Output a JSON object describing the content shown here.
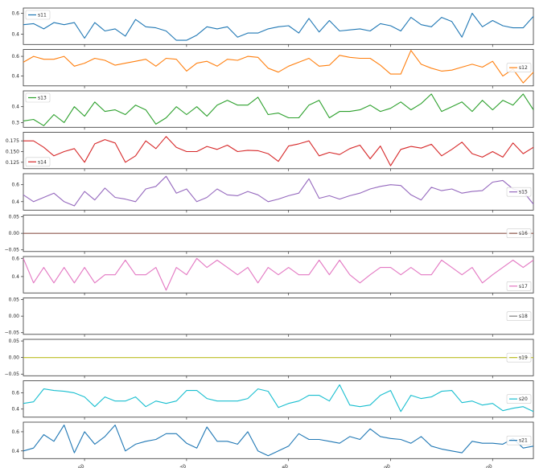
{
  "chart_data": {
    "type": "line",
    "layout": "stacked-subplots",
    "grid": false,
    "x": [
      154,
      155,
      156,
      157,
      158,
      159,
      160,
      161,
      162,
      163,
      164,
      165,
      166,
      167,
      168,
      169,
      170,
      171,
      172,
      173,
      174,
      175,
      176,
      177,
      178,
      179,
      180,
      181,
      182,
      183,
      184,
      185,
      186,
      187,
      188,
      189,
      190,
      191,
      192,
      193,
      194,
      195,
      196,
      197,
      198,
      199,
      200,
      201,
      202,
      203,
      204
    ],
    "xlim": [
      154,
      204
    ],
    "xticks": [
      160,
      170,
      180,
      190,
      200
    ],
    "xtick_labels": [
      "160",
      "170",
      "180",
      "190",
      "200"
    ],
    "panels": [
      {
        "name": "s11",
        "color": "#1f77b4",
        "legend_loc": "top-left",
        "ylim": [
          0.3,
          0.65
        ],
        "yticks": [
          0.4,
          0.6
        ],
        "ytick_labels": [
          "0.4",
          "0.6"
        ],
        "values": [
          0.49,
          0.5,
          0.45,
          0.51,
          0.49,
          0.51,
          0.36,
          0.51,
          0.43,
          0.45,
          0.38,
          0.54,
          0.47,
          0.46,
          0.43,
          0.34,
          0.34,
          0.39,
          0.47,
          0.45,
          0.47,
          0.37,
          0.41,
          0.41,
          0.45,
          0.47,
          0.48,
          0.41,
          0.55,
          0.42,
          0.53,
          0.43,
          0.44,
          0.45,
          0.43,
          0.5,
          0.48,
          0.43,
          0.56,
          0.49,
          0.47,
          0.56,
          0.52,
          0.37,
          0.6,
          0.47,
          0.53,
          0.48,
          0.46,
          0.46,
          0.57
        ]
      },
      {
        "name": "s12",
        "color": "#ff7f0e",
        "legend_loc": "right",
        "ylim": [
          0.3,
          0.67
        ],
        "yticks": [
          0.4,
          0.6
        ],
        "ytick_labels": [
          "0.4",
          "0.6"
        ],
        "values": [
          0.54,
          0.6,
          0.57,
          0.57,
          0.6,
          0.5,
          0.53,
          0.58,
          0.56,
          0.51,
          0.53,
          0.55,
          0.57,
          0.5,
          0.58,
          0.57,
          0.45,
          0.53,
          0.55,
          0.5,
          0.57,
          0.56,
          0.6,
          0.59,
          0.48,
          0.44,
          0.5,
          0.54,
          0.58,
          0.5,
          0.51,
          0.61,
          0.59,
          0.58,
          0.58,
          0.51,
          0.42,
          0.42,
          0.66,
          0.52,
          0.48,
          0.45,
          0.46,
          0.49,
          0.52,
          0.49,
          0.55,
          0.4,
          0.47,
          0.33,
          0.44
        ]
      },
      {
        "name": "s13",
        "color": "#2ca02c",
        "legend_loc": "top-left",
        "ylim": [
          0.27,
          0.5
        ],
        "yticks": [
          0.3,
          0.4
        ],
        "ytick_labels": [
          "0.3",
          "0.4"
        ],
        "values": [
          0.31,
          0.32,
          0.28,
          0.35,
          0.3,
          0.4,
          0.34,
          0.43,
          0.37,
          0.38,
          0.35,
          0.41,
          0.38,
          0.29,
          0.33,
          0.4,
          0.35,
          0.4,
          0.34,
          0.41,
          0.44,
          0.41,
          0.41,
          0.46,
          0.35,
          0.36,
          0.33,
          0.33,
          0.41,
          0.44,
          0.33,
          0.37,
          0.37,
          0.38,
          0.41,
          0.37,
          0.39,
          0.43,
          0.38,
          0.42,
          0.48,
          0.37,
          0.4,
          0.43,
          0.37,
          0.44,
          0.38,
          0.44,
          0.41,
          0.48,
          0.38
        ]
      },
      {
        "name": "s14",
        "color": "#d62728",
        "legend_loc": "bottom-left",
        "ylim": [
          0.11,
          0.195
        ],
        "yticks": [
          0.125,
          0.15,
          0.175
        ],
        "ytick_labels": [
          "0.125",
          "0.150",
          "0.175"
        ],
        "values": [
          0.175,
          0.175,
          0.16,
          0.14,
          0.15,
          0.157,
          0.125,
          0.168,
          0.178,
          0.17,
          0.125,
          0.14,
          0.175,
          0.157,
          0.185,
          0.16,
          0.15,
          0.15,
          0.162,
          0.155,
          0.165,
          0.15,
          0.153,
          0.152,
          0.145,
          0.127,
          0.163,
          0.168,
          0.175,
          0.14,
          0.148,
          0.143,
          0.157,
          0.165,
          0.133,
          0.163,
          0.117,
          0.155,
          0.162,
          0.158,
          0.167,
          0.14,
          0.155,
          0.172,
          0.145,
          0.137,
          0.15,
          0.137,
          0.17,
          0.145,
          0.16
        ]
      },
      {
        "name": "s15",
        "color": "#9467bd",
        "legend_loc": "right",
        "ylim": [
          0.3,
          0.73
        ],
        "yticks": [
          0.4,
          0.6
        ],
        "ytick_labels": [
          "0.4",
          "0.6"
        ],
        "values": [
          0.48,
          0.4,
          0.45,
          0.5,
          0.4,
          0.35,
          0.52,
          0.42,
          0.56,
          0.45,
          0.43,
          0.4,
          0.55,
          0.58,
          0.7,
          0.5,
          0.55,
          0.4,
          0.45,
          0.55,
          0.48,
          0.47,
          0.52,
          0.48,
          0.4,
          0.43,
          0.47,
          0.5,
          0.67,
          0.44,
          0.47,
          0.43,
          0.47,
          0.5,
          0.55,
          0.58,
          0.6,
          0.59,
          0.48,
          0.42,
          0.57,
          0.53,
          0.55,
          0.5,
          0.52,
          0.53,
          0.63,
          0.65,
          0.55,
          0.52,
          0.37
        ]
      },
      {
        "name": "s16",
        "color": "#8c564b",
        "legend_loc": "right",
        "ylim": [
          -0.055,
          0.055
        ],
        "constant": 0.0,
        "yticks": [
          -0.05,
          0.0,
          0.05
        ],
        "ytick_labels": [
          "−0.05",
          "0.00",
          "0.05"
        ]
      },
      {
        "name": "s17",
        "color": "#e377c2",
        "legend_loc": "bottom-right",
        "ylim": [
          0.22,
          0.62
        ],
        "yticks": [
          0.4,
          0.6
        ],
        "ytick_labels": [
          "0.4",
          "0.6"
        ],
        "values": [
          0.6,
          0.33,
          0.5,
          0.33,
          0.5,
          0.33,
          0.5,
          0.33,
          0.42,
          0.42,
          0.58,
          0.42,
          0.42,
          0.5,
          0.25,
          0.5,
          0.42,
          0.6,
          0.5,
          0.58,
          0.5,
          0.42,
          0.5,
          0.33,
          0.5,
          0.42,
          0.5,
          0.42,
          0.42,
          0.58,
          0.42,
          0.58,
          0.42,
          0.33,
          0.42,
          0.5,
          0.5,
          0.42,
          0.5,
          0.42,
          0.42,
          0.58,
          0.5,
          0.42,
          0.5,
          0.33,
          0.42,
          0.5,
          0.58,
          0.5,
          0.58
        ]
      },
      {
        "name": "s18",
        "color": "#7f7f7f",
        "legend_loc": "right",
        "ylim": [
          -0.055,
          0.055
        ],
        "constant": null,
        "yticks": [
          -0.05,
          0.0,
          0.05
        ],
        "ytick_labels": [
          "−0.05",
          "0.00",
          "0.05"
        ]
      },
      {
        "name": "s19",
        "color": "#bcbd22",
        "legend_loc": "right",
        "ylim": [
          -0.055,
          0.055
        ],
        "constant": 0.0,
        "yticks": [
          -0.05,
          0.0,
          0.05
        ],
        "ytick_labels": [
          "−0.05",
          "0.00",
          "0.05"
        ]
      },
      {
        "name": "s20",
        "color": "#17becf",
        "legend_loc": "right",
        "ylim": [
          0.3,
          0.75
        ],
        "yticks": [
          0.4,
          0.6
        ],
        "ytick_labels": [
          "0.4",
          "0.6"
        ],
        "values": [
          0.47,
          0.49,
          0.65,
          0.63,
          0.62,
          0.6,
          0.55,
          0.43,
          0.55,
          0.5,
          0.5,
          0.55,
          0.43,
          0.5,
          0.47,
          0.5,
          0.63,
          0.63,
          0.53,
          0.5,
          0.5,
          0.5,
          0.53,
          0.65,
          0.62,
          0.42,
          0.47,
          0.5,
          0.57,
          0.57,
          0.5,
          0.7,
          0.45,
          0.43,
          0.45,
          0.57,
          0.63,
          0.37,
          0.57,
          0.53,
          0.55,
          0.62,
          0.63,
          0.48,
          0.5,
          0.45,
          0.47,
          0.38,
          0.41,
          0.43,
          0.37
        ]
      },
      {
        "name": "s21",
        "color": "#1f77b4",
        "legend_loc": "right",
        "ylim": [
          0.32,
          0.7
        ],
        "yticks": [
          0.4,
          0.6
        ],
        "ytick_labels": [
          "0.4",
          "0.6"
        ],
        "values": [
          0.4,
          0.43,
          0.57,
          0.5,
          0.67,
          0.38,
          0.6,
          0.47,
          0.55,
          0.67,
          0.4,
          0.47,
          0.5,
          0.52,
          0.58,
          0.58,
          0.48,
          0.43,
          0.65,
          0.5,
          0.5,
          0.47,
          0.6,
          0.4,
          0.35,
          0.4,
          0.45,
          0.58,
          0.52,
          0.52,
          0.5,
          0.48,
          0.55,
          0.52,
          0.63,
          0.55,
          0.53,
          0.52,
          0.48,
          0.55,
          0.45,
          0.42,
          0.4,
          0.38,
          0.5,
          0.48,
          0.48,
          0.47,
          0.53,
          0.43,
          0.45
        ]
      }
    ]
  }
}
